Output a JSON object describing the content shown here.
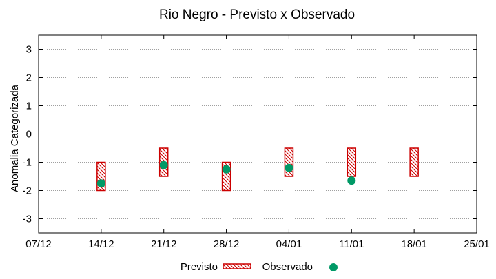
{
  "chart_data": {
    "type": "range-bar-with-points",
    "title": "Rio Negro - Previsto x Observado",
    "xlabel": "",
    "ylabel": "Anomalia Categorizada",
    "ylim": [
      -3.5,
      3.5
    ],
    "y_ticks": [
      3,
      2,
      1,
      0,
      -1,
      -2,
      -3
    ],
    "x_tick_labels": [
      "07/12",
      "14/12",
      "21/12",
      "28/12",
      "04/01",
      "11/01",
      "18/01",
      "25/01"
    ],
    "grid": "horizontal dotted",
    "legend": {
      "placement": "bottom-center",
      "previsto_label": "Previsto",
      "observado_label": "Observado"
    },
    "colors": {
      "previsto": "#cc0000",
      "observado": "#009966",
      "grid": "#a0a0a0"
    },
    "previsto": [
      {
        "x": 1,
        "low": -2,
        "high": -1
      },
      {
        "x": 2,
        "low": -1.5,
        "high": -0.5
      },
      {
        "x": 3,
        "low": -2,
        "high": -1
      },
      {
        "x": 4,
        "low": -1.5,
        "high": -0.5
      },
      {
        "x": 5,
        "low": -1.5,
        "high": -0.5
      },
      {
        "x": 6,
        "low": -1.5,
        "high": -0.5
      }
    ],
    "observado": [
      {
        "x": 1,
        "y": -1.75
      },
      {
        "x": 2,
        "y": -1.1
      },
      {
        "x": 3,
        "y": -1.25
      },
      {
        "x": 4,
        "y": -1.2
      },
      {
        "x": 5,
        "y": -1.65
      }
    ]
  }
}
